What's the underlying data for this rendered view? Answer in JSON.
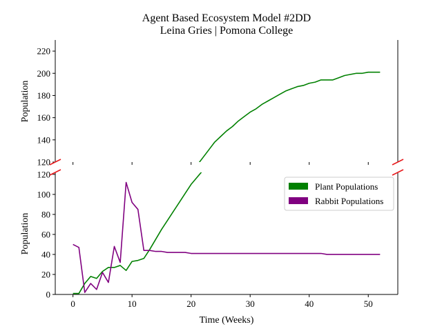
{
  "chart_data": {
    "type": "line",
    "title": "Agent Based Ecosystem Model #2DD",
    "subtitle": "Leina Gries | Pomona College",
    "xlabel": "Time (Weeks)",
    "ylabel_top": "Population",
    "ylabel_bottom": "Population",
    "xlim": [
      -3,
      55
    ],
    "x_ticks": [
      0,
      10,
      20,
      30,
      40,
      50
    ],
    "broken_y_axis": true,
    "top_panel": {
      "ylim": [
        120,
        230
      ],
      "y_ticks": [
        120,
        140,
        160,
        180,
        200,
        220
      ]
    },
    "bottom_panel": {
      "ylim": [
        0,
        122
      ],
      "y_ticks": [
        0,
        20,
        40,
        60,
        80,
        100,
        120
      ]
    },
    "legend_position": "upper-right of bottom panel",
    "grid": false,
    "x": [
      0,
      1,
      2,
      3,
      4,
      5,
      6,
      7,
      8,
      9,
      10,
      11,
      12,
      13,
      14,
      15,
      16,
      17,
      18,
      19,
      20,
      21,
      22,
      23,
      24,
      25,
      26,
      27,
      28,
      29,
      30,
      31,
      32,
      33,
      34,
      35,
      36,
      37,
      38,
      39,
      40,
      41,
      42,
      43,
      44,
      45,
      46,
      47,
      48,
      49,
      50,
      51,
      52
    ],
    "series": [
      {
        "name": "Plant Populations",
        "color": "#008000",
        "values": [
          1,
          1,
          11,
          18,
          16,
          23,
          27,
          27,
          29,
          24,
          33,
          34,
          36,
          45,
          55,
          65,
          74,
          83,
          92,
          101,
          110,
          117,
          124,
          131,
          138,
          143,
          148,
          152,
          157,
          161,
          165,
          168,
          172,
          175,
          178,
          181,
          184,
          186,
          188,
          189,
          191,
          192,
          194,
          194,
          194,
          196,
          198,
          199,
          200,
          200,
          201,
          201,
          201
        ]
      },
      {
        "name": "Rabbit Populations",
        "color": "#800080",
        "values": [
          50,
          47,
          2,
          11,
          5,
          22,
          12,
          48,
          32,
          112,
          92,
          85,
          44,
          44,
          43,
          43,
          42,
          42,
          42,
          42,
          41,
          41,
          41,
          41,
          41,
          41,
          41,
          41,
          41,
          41,
          41,
          41,
          41,
          41,
          41,
          41,
          41,
          41,
          41,
          41,
          41,
          41,
          41,
          40,
          40,
          40,
          40,
          40,
          40,
          40,
          40,
          40,
          40
        ]
      }
    ]
  }
}
